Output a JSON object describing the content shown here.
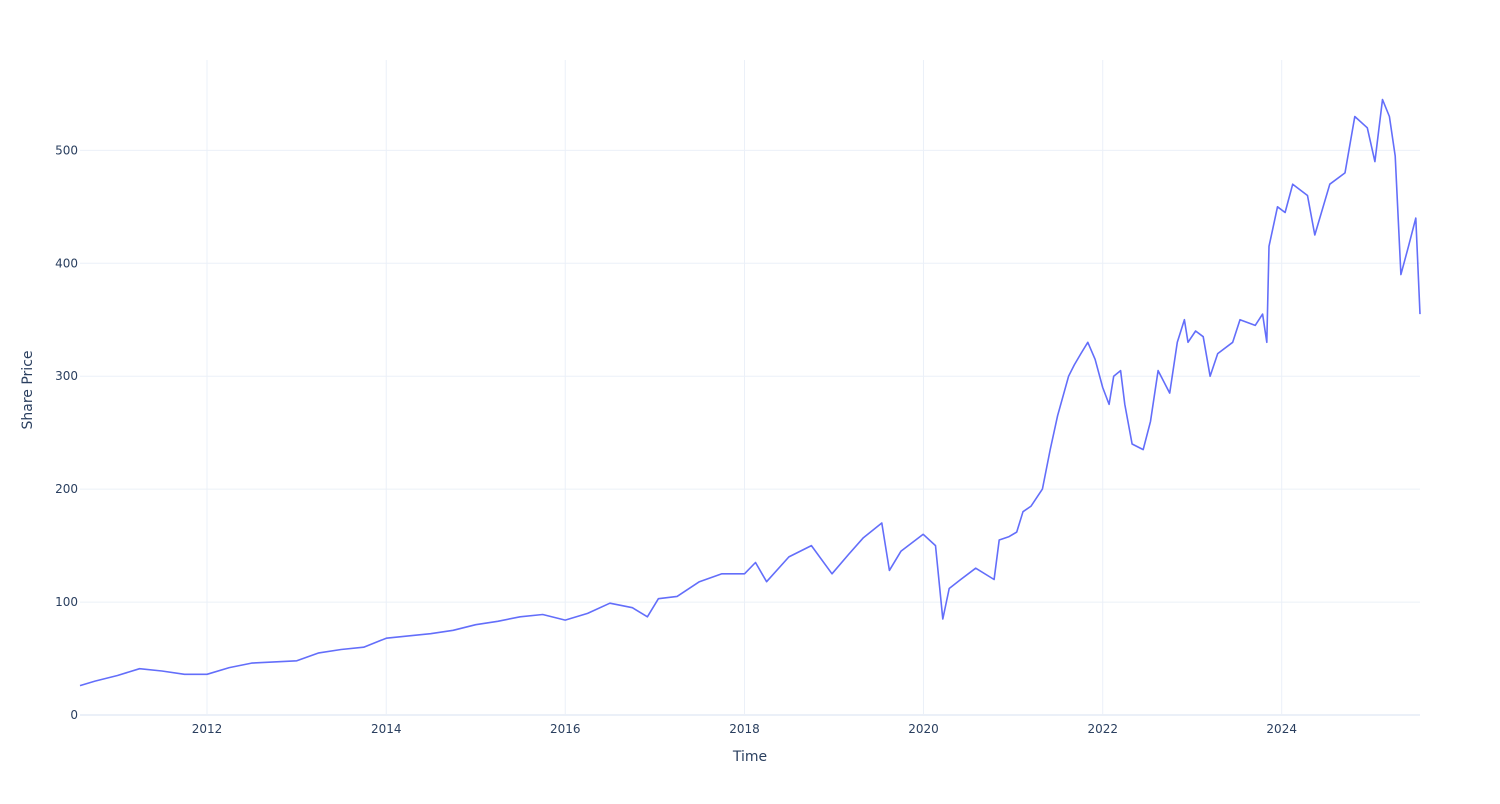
{
  "chart_data": {
    "type": "line",
    "title": "",
    "xlabel": "Time",
    "ylabel": "Share Price",
    "x_domain": [
      "2010-08-01",
      "2025-07-18"
    ],
    "ylim": [
      0,
      580
    ],
    "x_ticks": [
      "2012",
      "2014",
      "2016",
      "2018",
      "2020",
      "2022",
      "2024"
    ],
    "y_ticks": [
      0,
      100,
      200,
      300,
      400,
      500
    ],
    "grid": true,
    "legend": "none",
    "colors": {
      "line": "#636efa",
      "grid": "#ebf0f8",
      "zeroline": "#ebf0f8",
      "text": "#2a3f5f"
    },
    "series": [
      {
        "x": [
          "2010-08-01",
          "2010-10-01",
          "2011-01-01",
          "2011-04-01",
          "2011-07-01",
          "2011-10-01",
          "2012-01-01",
          "2012-04-01",
          "2012-07-01",
          "2012-10-01",
          "2013-01-01",
          "2013-04-01",
          "2013-07-01",
          "2013-10-01",
          "2014-01-01",
          "2014-04-01",
          "2014-07-01",
          "2014-10-01",
          "2015-01-01",
          "2015-04-01",
          "2015-07-01",
          "2015-10-01",
          "2016-01-01",
          "2016-04-01",
          "2016-07-01",
          "2016-10-01",
          "2016-12-01",
          "2017-01-15",
          "2017-04-01",
          "2017-07-01",
          "2017-10-01",
          "2018-01-01",
          "2018-02-15",
          "2018-04-01",
          "2018-07-01",
          "2018-10-01",
          "2018-12-24",
          "2019-03-01",
          "2019-05-01",
          "2019-07-15",
          "2019-08-15",
          "2019-10-01",
          "2019-12-31",
          "2020-02-19",
          "2020-03-20",
          "2020-04-15",
          "2020-06-01",
          "2020-08-01",
          "2020-10-15",
          "2020-11-05",
          "2020-12-15",
          "2021-01-15",
          "2021-02-10",
          "2021-03-15",
          "2021-04-30",
          "2021-06-01",
          "2021-07-01",
          "2021-08-15",
          "2021-09-07",
          "2021-10-04",
          "2021-11-01",
          "2021-12-01",
          "2022-01-01",
          "2022-01-27",
          "2022-02-15",
          "2022-03-15",
          "2022-04-01",
          "2022-05-01",
          "2022-06-15",
          "2022-07-15",
          "2022-08-15",
          "2022-10-01",
          "2022-11-01",
          "2022-11-30",
          "2022-12-15",
          "2023-01-15",
          "2023-02-15",
          "2023-03-15",
          "2023-04-15",
          "2023-06-15",
          "2023-07-15",
          "2023-09-15",
          "2023-10-15",
          "2023-11-01",
          "2023-11-10",
          "2023-12-15",
          "2024-01-15",
          "2024-02-15",
          "2024-04-15",
          "2024-05-15",
          "2024-07-15",
          "2024-09-15",
          "2024-10-25",
          "2024-12-15",
          "2025-01-15",
          "2025-02-15",
          "2025-03-15",
          "2025-04-08",
          "2025-05-01",
          "2025-06-01",
          "2025-07-01",
          "2025-07-18"
        ],
        "y": [
          26,
          30,
          35,
          41,
          39,
          36,
          36,
          42,
          46,
          47,
          48,
          55,
          58,
          60,
          68,
          70,
          72,
          75,
          80,
          83,
          87,
          89,
          84,
          90,
          99,
          95,
          87,
          103,
          105,
          118,
          125,
          125,
          135,
          118,
          140,
          150,
          125,
          142,
          157,
          170,
          128,
          145,
          160,
          150,
          85,
          112,
          120,
          130,
          120,
          155,
          158,
          162,
          180,
          185,
          200,
          235,
          265,
          300,
          310,
          320,
          330,
          315,
          290,
          275,
          300,
          305,
          275,
          240,
          235,
          260,
          305,
          285,
          330,
          350,
          330,
          340,
          335,
          300,
          320,
          330,
          350,
          345,
          355,
          330,
          415,
          450,
          445,
          470,
          460,
          425,
          470,
          480,
          530,
          520,
          490,
          545,
          530,
          495,
          390,
          415,
          440,
          355
        ]
      }
    ]
  }
}
